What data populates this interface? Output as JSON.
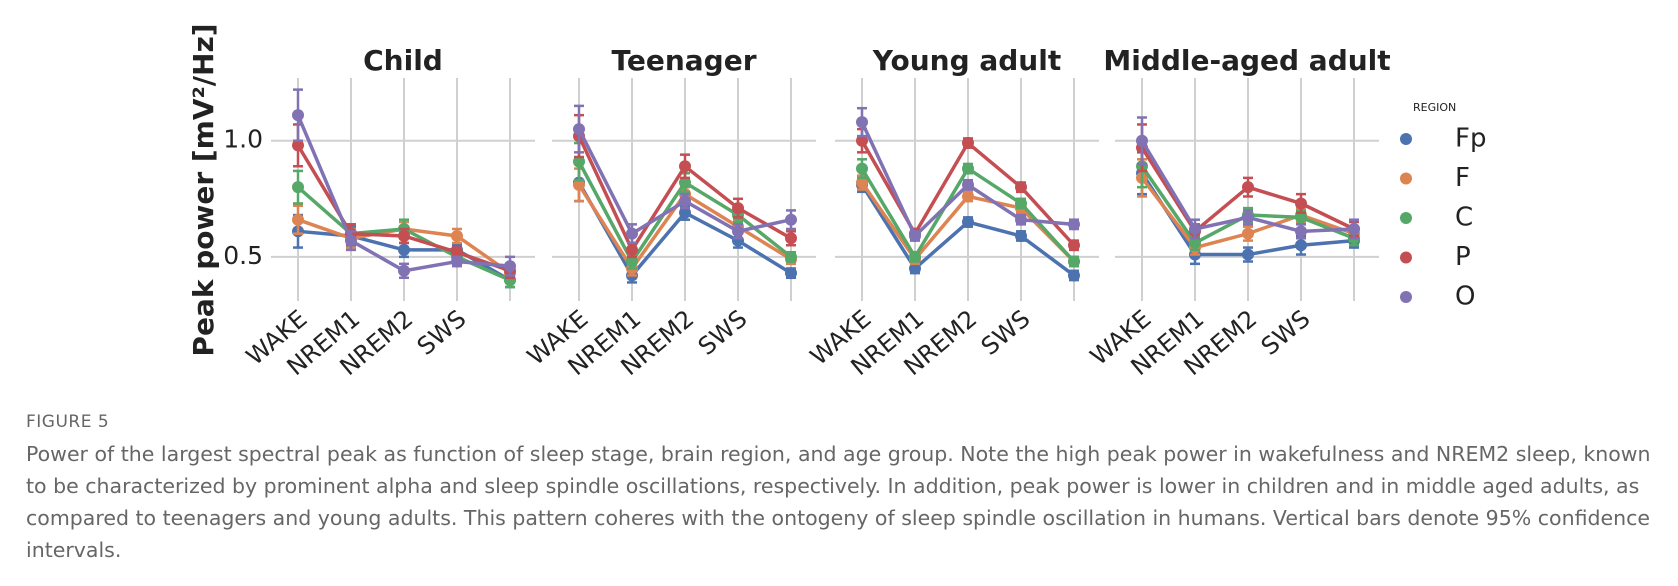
{
  "figure_label": "FIGURE 5",
  "caption": "Power of the largest spectral peak as function of sleep stage, brain region, and age group. Note the high peak power in wakefulness and NREM2 sleep, known to be characterized by prominent alpha and sleep spindle oscillations, respectively. In addition, peak power is lower in children and in middle aged adults, as compared to teenagers and young adults. This pattern coheres with the ontogeny of sleep spindle oscillation in humans. Vertical bars denote 95% confidence intervals.",
  "chart_data": [
    {
      "type": "line",
      "title": "Child",
      "ylabel": "Peak power [mV²/Hz]",
      "categories": [
        "WAKE",
        "NREM1",
        "NREM2",
        "SWS",
        null
      ],
      "ylim": [
        0.31,
        1.27
      ],
      "yticks": [
        0.5,
        {
          "value": 1,
          "label": "1.0"
        }
      ],
      "grid": true,
      "series": [
        {
          "name": "Fp",
          "color": "#4c72b0",
          "values": [
            0.61,
            0.59,
            0.53,
            0.53,
            0.4
          ],
          "errors": [
            0.07,
            0.04,
            0.03,
            0.02,
            0.03
          ]
        },
        {
          "name": "F",
          "color": "#dd8452",
          "values": [
            0.66,
            0.58,
            0.62,
            0.59,
            0.43
          ],
          "errors": [
            0.06,
            0.04,
            0.03,
            0.03,
            0.03
          ]
        },
        {
          "name": "C",
          "color": "#55a868",
          "values": [
            0.8,
            0.6,
            0.62,
            0.5,
            0.4
          ],
          "errors": [
            0.07,
            0.04,
            0.04,
            0.02,
            0.03
          ]
        },
        {
          "name": "P",
          "color": "#c44e52",
          "values": [
            0.98,
            0.6,
            0.59,
            0.52,
            0.44
          ],
          "errors": [
            0.09,
            0.04,
            0.03,
            0.02,
            0.03
          ]
        },
        {
          "name": "O",
          "color": "#8172b3",
          "values": [
            1.11,
            0.57,
            0.44,
            0.48,
            0.46
          ],
          "errors": [
            0.11,
            0.04,
            0.03,
            0.02,
            0.04
          ]
        }
      ]
    },
    {
      "type": "line",
      "title": "Teenager",
      "categories": [
        "WAKE",
        "NREM1",
        "NREM2",
        "SWS",
        null
      ],
      "ylim": [
        0.31,
        1.27
      ],
      "yticks": [
        0.5,
        {
          "value": 1,
          "label": "1.0"
        }
      ],
      "grid": true,
      "series": [
        {
          "name": "Fp",
          "color": "#4c72b0",
          "values": [
            0.82,
            0.42,
            0.69,
            0.57,
            0.43
          ],
          "errors": [
            0.08,
            0.03,
            0.03,
            0.03,
            0.02
          ]
        },
        {
          "name": "F",
          "color": "#dd8452",
          "values": [
            0.81,
            0.45,
            0.77,
            0.63,
            0.49
          ],
          "errors": [
            0.07,
            0.03,
            0.03,
            0.03,
            0.02
          ]
        },
        {
          "name": "C",
          "color": "#55a868",
          "values": [
            0.91,
            0.48,
            0.82,
            0.68,
            0.5
          ],
          "errors": [
            0.08,
            0.03,
            0.04,
            0.03,
            0.02
          ]
        },
        {
          "name": "P",
          "color": "#c44e52",
          "values": [
            1.02,
            0.53,
            0.89,
            0.71,
            0.58
          ],
          "errors": [
            0.09,
            0.03,
            0.05,
            0.04,
            0.03
          ]
        },
        {
          "name": "O",
          "color": "#8172b3",
          "values": [
            1.05,
            0.6,
            0.74,
            0.61,
            0.66
          ],
          "errors": [
            0.1,
            0.04,
            0.03,
            0.03,
            0.04
          ]
        }
      ]
    },
    {
      "type": "line",
      "title": "Young adult",
      "categories": [
        "WAKE",
        "NREM1",
        "NREM2",
        "SWS",
        null
      ],
      "ylim": [
        0.31,
        1.27
      ],
      "yticks": [
        0.5,
        {
          "value": 1,
          "label": "1.0"
        }
      ],
      "grid": true,
      "series": [
        {
          "name": "Fp",
          "color": "#4c72b0",
          "values": [
            0.81,
            0.45,
            0.65,
            0.59,
            0.42
          ],
          "errors": [
            0.03,
            0.02,
            0.02,
            0.02,
            0.02
          ]
        },
        {
          "name": "F",
          "color": "#dd8452",
          "values": [
            0.82,
            0.49,
            0.76,
            0.71,
            0.48
          ],
          "errors": [
            0.03,
            0.02,
            0.02,
            0.02,
            0.02
          ]
        },
        {
          "name": "C",
          "color": "#55a868",
          "values": [
            0.88,
            0.5,
            0.88,
            0.73,
            0.48
          ],
          "errors": [
            0.04,
            0.02,
            0.02,
            0.02,
            0.02
          ]
        },
        {
          "name": "P",
          "color": "#c44e52",
          "values": [
            1.0,
            0.6,
            0.99,
            0.8,
            0.55
          ],
          "errors": [
            0.05,
            0.02,
            0.02,
            0.02,
            0.02
          ]
        },
        {
          "name": "O",
          "color": "#8172b3",
          "values": [
            1.08,
            0.59,
            0.81,
            0.66,
            0.64
          ],
          "errors": [
            0.06,
            0.02,
            0.02,
            0.02,
            0.02
          ]
        }
      ]
    },
    {
      "type": "line",
      "title": "Middle-aged adult",
      "legend_title": "REGION",
      "categories": [
        "WAKE",
        "NREM1",
        "NREM2",
        "SWS",
        null
      ],
      "ylim": [
        0.31,
        1.27
      ],
      "yticks": [
        0.5,
        {
          "value": 1,
          "label": "1.0"
        }
      ],
      "grid": true,
      "series": [
        {
          "name": "Fp",
          "color": "#4c72b0",
          "values": [
            0.86,
            0.51,
            0.51,
            0.55,
            0.57
          ],
          "errors": [
            0.09,
            0.04,
            0.03,
            0.04,
            0.03
          ]
        },
        {
          "name": "F",
          "color": "#dd8452",
          "values": [
            0.84,
            0.54,
            0.6,
            0.68,
            0.6
          ],
          "errors": [
            0.08,
            0.03,
            0.03,
            0.03,
            0.03
          ]
        },
        {
          "name": "C",
          "color": "#55a868",
          "values": [
            0.89,
            0.56,
            0.68,
            0.67,
            0.58
          ],
          "errors": [
            0.09,
            0.03,
            0.03,
            0.03,
            0.03
          ]
        },
        {
          "name": "P",
          "color": "#c44e52",
          "values": [
            0.97,
            0.61,
            0.8,
            0.73,
            0.62
          ],
          "errors": [
            0.1,
            0.03,
            0.04,
            0.04,
            0.03
          ]
        },
        {
          "name": "O",
          "color": "#8172b3",
          "values": [
            1.0,
            0.62,
            0.67,
            0.61,
            0.62
          ],
          "errors": [
            0.1,
            0.04,
            0.03,
            0.03,
            0.04
          ]
        }
      ]
    }
  ]
}
